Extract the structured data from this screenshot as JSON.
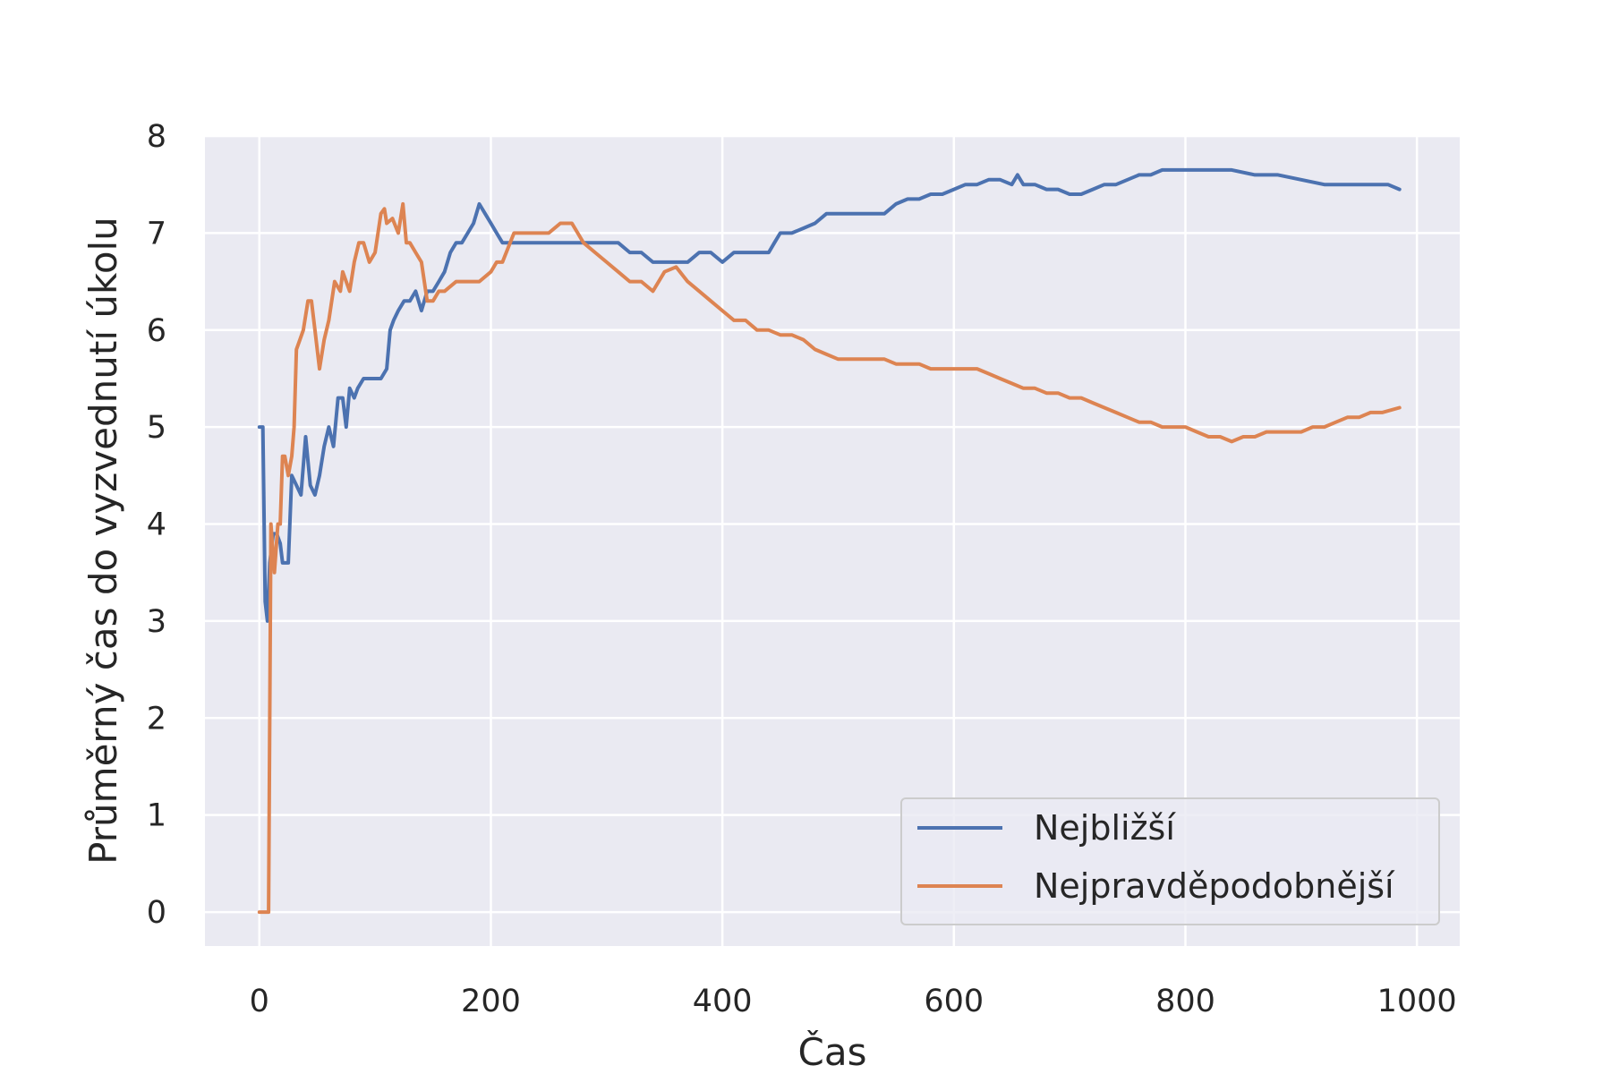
{
  "chart_data": {
    "type": "line",
    "xlabel": "Čas",
    "ylabel": "Průměrný čas do vyzvednutí úkolu",
    "xlim": [
      -47,
      1037
    ],
    "ylim": [
      -0.35,
      8
    ],
    "xticks": [
      0,
      200,
      400,
      600,
      800,
      1000
    ],
    "yticks": [
      0,
      1,
      2,
      3,
      4,
      5,
      6,
      7,
      8
    ],
    "grid": true,
    "legend_position": "lower-right",
    "series": [
      {
        "name": "Nejbližší",
        "color": "#4c72b0",
        "x": [
          0,
          3,
          5,
          7,
          9,
          12,
          15,
          18,
          20,
          25,
          28,
          32,
          36,
          40,
          44,
          48,
          52,
          56,
          60,
          64,
          68,
          72,
          75,
          78,
          82,
          85,
          90,
          95,
          100,
          105,
          110,
          113,
          116,
          120,
          125,
          130,
          135,
          140,
          145,
          150,
          155,
          160,
          165,
          170,
          175,
          180,
          185,
          190,
          195,
          200,
          205,
          210,
          215,
          220,
          230,
          240,
          250,
          260,
          270,
          280,
          290,
          300,
          310,
          320,
          330,
          340,
          350,
          360,
          370,
          380,
          390,
          400,
          410,
          420,
          430,
          440,
          445,
          450,
          460,
          470,
          480,
          490,
          500,
          510,
          520,
          530,
          540,
          550,
          560,
          570,
          580,
          590,
          600,
          610,
          620,
          630,
          640,
          650,
          655,
          660,
          670,
          680,
          690,
          700,
          710,
          720,
          730,
          740,
          750,
          760,
          770,
          780,
          790,
          800,
          820,
          840,
          860,
          880,
          900,
          920,
          940,
          960,
          975,
          985
        ],
        "values": [
          5.0,
          5.0,
          3.2,
          3.0,
          3.6,
          3.9,
          3.9,
          3.8,
          3.6,
          3.6,
          4.5,
          4.4,
          4.3,
          4.9,
          4.4,
          4.3,
          4.5,
          4.8,
          5.0,
          4.8,
          5.3,
          5.3,
          5.0,
          5.4,
          5.3,
          5.4,
          5.5,
          5.5,
          5.5,
          5.5,
          5.6,
          6.0,
          6.1,
          6.2,
          6.3,
          6.3,
          6.4,
          6.2,
          6.4,
          6.4,
          6.5,
          6.6,
          6.8,
          6.9,
          6.9,
          7.0,
          7.1,
          7.3,
          7.2,
          7.1,
          7.0,
          6.9,
          6.9,
          6.9,
          6.9,
          6.9,
          6.9,
          6.9,
          6.9,
          6.9,
          6.9,
          6.9,
          6.9,
          6.8,
          6.8,
          6.7,
          6.7,
          6.7,
          6.7,
          6.8,
          6.8,
          6.7,
          6.8,
          6.8,
          6.8,
          6.8,
          6.9,
          7.0,
          7.0,
          7.05,
          7.1,
          7.2,
          7.2,
          7.2,
          7.2,
          7.2,
          7.2,
          7.3,
          7.35,
          7.35,
          7.4,
          7.4,
          7.45,
          7.5,
          7.5,
          7.55,
          7.55,
          7.5,
          7.6,
          7.5,
          7.5,
          7.45,
          7.45,
          7.4,
          7.4,
          7.45,
          7.5,
          7.5,
          7.55,
          7.6,
          7.6,
          7.65,
          7.65,
          7.65,
          7.65,
          7.65,
          7.6,
          7.6,
          7.55,
          7.5,
          7.5,
          7.5,
          7.5,
          7.45
        ]
      },
      {
        "name": "Nejpravděpodobnější",
        "color": "#dd8452",
        "x": [
          0,
          5,
          8,
          10,
          13,
          16,
          18,
          20,
          22,
          25,
          28,
          30,
          32,
          35,
          38,
          42,
          45,
          48,
          52,
          56,
          60,
          65,
          70,
          72,
          75,
          78,
          82,
          86,
          90,
          95,
          100,
          105,
          108,
          110,
          115,
          120,
          124,
          127,
          130,
          135,
          140,
          145,
          150,
          155,
          160,
          170,
          180,
          190,
          200,
          205,
          210,
          220,
          230,
          240,
          250,
          260,
          270,
          275,
          280,
          290,
          300,
          310,
          320,
          330,
          340,
          350,
          360,
          370,
          380,
          390,
          400,
          410,
          420,
          430,
          440,
          450,
          460,
          470,
          480,
          490,
          500,
          510,
          520,
          530,
          540,
          550,
          560,
          570,
          580,
          590,
          600,
          610,
          620,
          630,
          640,
          650,
          660,
          670,
          680,
          690,
          700,
          710,
          720,
          730,
          740,
          750,
          760,
          770,
          780,
          790,
          800,
          810,
          820,
          830,
          840,
          850,
          860,
          870,
          880,
          890,
          900,
          910,
          920,
          930,
          940,
          950,
          960,
          970,
          985
        ],
        "values": [
          0,
          0,
          0,
          4.0,
          3.5,
          4.0,
          4.0,
          4.7,
          4.7,
          4.5,
          4.7,
          5.0,
          5.8,
          5.9,
          6.0,
          6.3,
          6.3,
          6.0,
          5.6,
          5.9,
          6.1,
          6.5,
          6.4,
          6.6,
          6.5,
          6.4,
          6.7,
          6.9,
          6.9,
          6.7,
          6.8,
          7.2,
          7.25,
          7.1,
          7.15,
          7.0,
          7.3,
          6.9,
          6.9,
          6.8,
          6.7,
          6.3,
          6.3,
          6.4,
          6.4,
          6.5,
          6.5,
          6.5,
          6.6,
          6.7,
          6.7,
          7.0,
          7.0,
          7.0,
          7.0,
          7.1,
          7.1,
          7.0,
          6.9,
          6.8,
          6.7,
          6.6,
          6.5,
          6.5,
          6.4,
          6.6,
          6.65,
          6.5,
          6.4,
          6.3,
          6.2,
          6.1,
          6.1,
          6.0,
          6.0,
          5.95,
          5.95,
          5.9,
          5.8,
          5.75,
          5.7,
          5.7,
          5.7,
          5.7,
          5.7,
          5.65,
          5.65,
          5.65,
          5.6,
          5.6,
          5.6,
          5.6,
          5.6,
          5.55,
          5.5,
          5.45,
          5.4,
          5.4,
          5.35,
          5.35,
          5.3,
          5.3,
          5.25,
          5.2,
          5.15,
          5.1,
          5.05,
          5.05,
          5.0,
          5.0,
          5.0,
          4.95,
          4.9,
          4.9,
          4.85,
          4.9,
          4.9,
          4.95,
          4.95,
          4.95,
          4.95,
          5.0,
          5.0,
          5.05,
          5.1,
          5.1,
          5.15,
          5.15,
          5.2
        ]
      }
    ]
  }
}
